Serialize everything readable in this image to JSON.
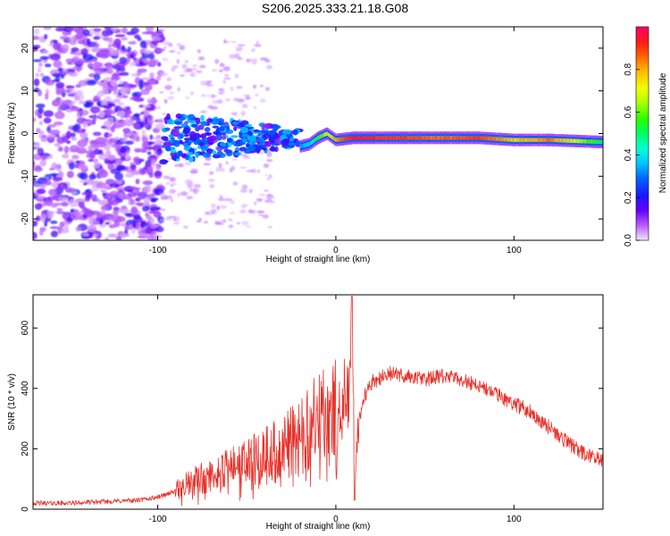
{
  "title": "S206.2025.333.21.18.G08",
  "chart_data": [
    {
      "type": "heatmap",
      "xlabel": "Height of straight line (km)",
      "ylabel": "Frequency (Hz)",
      "xlim": [
        -170,
        150
      ],
      "ylim": [
        -25,
        25
      ],
      "xticks": [
        -100,
        0,
        100
      ],
      "yticks": [
        -20,
        -10,
        0,
        10,
        20
      ],
      "colorbar": {
        "label": "Normalized spectral amplitude",
        "range": [
          0,
          1
        ],
        "ticks": [
          0.0,
          0.2,
          0.4,
          0.6,
          0.8
        ]
      },
      "ridge": [
        {
          "x": -20,
          "f": -3.0,
          "a": 0.35
        },
        {
          "x": -15,
          "f": -2.5,
          "a": 0.4
        },
        {
          "x": -10,
          "f": -1.0,
          "a": 0.55
        },
        {
          "x": -5,
          "f": 0.0,
          "a": 0.7
        },
        {
          "x": 0,
          "f": -1.5,
          "a": 0.8
        },
        {
          "x": 10,
          "f": -1.0,
          "a": 0.95
        },
        {
          "x": 30,
          "f": -1.0,
          "a": 0.9
        },
        {
          "x": 60,
          "f": -1.0,
          "a": 0.85
        },
        {
          "x": 80,
          "f": -1.0,
          "a": 0.9
        },
        {
          "x": 100,
          "f": -1.5,
          "a": 0.75
        },
        {
          "x": 120,
          "f": -1.5,
          "a": 0.85
        },
        {
          "x": 150,
          "f": -2.0,
          "a": 0.5
        }
      ]
    },
    {
      "type": "line",
      "xlabel": "Height of straight line (km)",
      "ylabel": "SNR (10 * v/v)",
      "xlim": [
        -170,
        150
      ],
      "ylim": [
        0,
        710
      ],
      "xticks": [
        -100,
        0,
        100
      ],
      "yticks": [
        0,
        200,
        400,
        600
      ],
      "color": "#e8312a",
      "series": [
        {
          "name": "SNR",
          "x": [
            -170,
            -150,
            -130,
            -110,
            -100,
            -90,
            -80,
            -70,
            -60,
            -50,
            -40,
            -30,
            -20,
            -10,
            0,
            5,
            8,
            9,
            10,
            11,
            12,
            15,
            20,
            30,
            40,
            50,
            60,
            70,
            80,
            90,
            100,
            110,
            120,
            130,
            140,
            150
          ],
          "y": [
            20,
            20,
            25,
            30,
            40,
            60,
            90,
            110,
            130,
            150,
            180,
            200,
            250,
            290,
            320,
            350,
            400,
            700,
            300,
            80,
            250,
            360,
            420,
            450,
            440,
            430,
            440,
            430,
            410,
            380,
            350,
            320,
            270,
            220,
            180,
            160
          ]
        }
      ]
    }
  ]
}
